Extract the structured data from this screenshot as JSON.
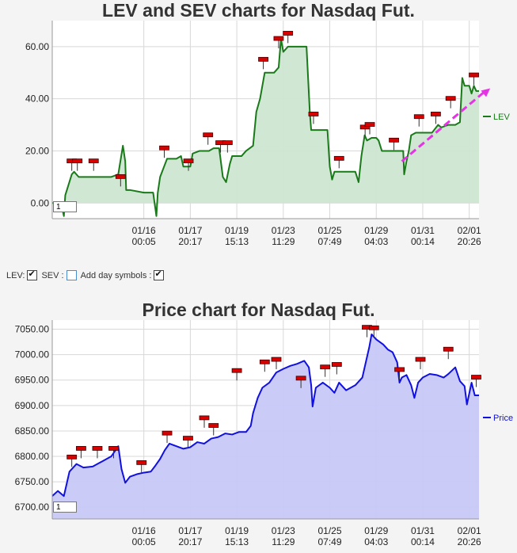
{
  "lev_chart": {
    "title": "LEV and SEV charts for Nasdaq Fut.",
    "zoom_value": "1",
    "legend_label": "LEV",
    "series_color": "#1a7a1a",
    "fill_color": "#cde6d2",
    "arrow_color": "#e633e6"
  },
  "price_chart": {
    "title": "Price chart for Nasdaq Fut.",
    "zoom_value": "1",
    "legend_label": "Price",
    "series_color": "#1010e0",
    "fill_color": "#c8c8f8"
  },
  "controls": {
    "lev_label": "LEV:",
    "sev_label": "SEV :",
    "day_symbols_label": "Add day symbols :",
    "lev_checked": true,
    "sev_checked": false,
    "day_symbols_checked": true
  },
  "chart_data": [
    {
      "type": "line",
      "title": "LEV and SEV charts for Nasdaq Fut.",
      "xlabel": "",
      "ylabel": "",
      "ylim": [
        -6,
        70
      ],
      "yticks": [
        "0.00",
        "20.00",
        "40.00",
        "60.00"
      ],
      "ytick_values": [
        0,
        20,
        40,
        60
      ],
      "xticks": [
        {
          "x": 1,
          "date": "01/16",
          "time": "00:05"
        },
        {
          "x": 2,
          "date": "01/17",
          "time": "20:17"
        },
        {
          "x": 3,
          "date": "01/19",
          "time": "15:13"
        },
        {
          "x": 4,
          "date": "01/23",
          "time": "11:29"
        },
        {
          "x": 5,
          "date": "01/25",
          "time": "07:49"
        },
        {
          "x": 6,
          "date": "01/29",
          "time": "04:03"
        },
        {
          "x": 7,
          "date": "01/31",
          "time": "00:14"
        },
        {
          "x": 8,
          "date": "02/01",
          "time": "20:26"
        }
      ],
      "xlim": [
        -0.97,
        8.21
      ],
      "grid": true,
      "legend": "right",
      "series": [
        {
          "name": "LEV",
          "points": [
            [
              -0.97,
              0
            ],
            [
              -0.78,
              0
            ],
            [
              -0.72,
              -5
            ],
            [
              -0.69,
              3
            ],
            [
              -0.55,
              11
            ],
            [
              -0.5,
              12
            ],
            [
              -0.4,
              10
            ],
            [
              -0.2,
              10
            ],
            [
              0.1,
              10
            ],
            [
              0.3,
              10
            ],
            [
              0.45,
              11
            ],
            [
              0.55,
              22
            ],
            [
              0.6,
              16
            ],
            [
              0.62,
              5
            ],
            [
              0.7,
              5
            ],
            [
              1.0,
              4
            ],
            [
              1.2,
              4
            ],
            [
              1.27,
              -5
            ],
            [
              1.3,
              4
            ],
            [
              1.35,
              10
            ],
            [
              1.5,
              17
            ],
            [
              1.7,
              17
            ],
            [
              1.8,
              18
            ],
            [
              1.85,
              14
            ],
            [
              2.0,
              14
            ],
            [
              2.05,
              19
            ],
            [
              2.2,
              20
            ],
            [
              2.4,
              20
            ],
            [
              2.5,
              21
            ],
            [
              2.62,
              21
            ],
            [
              2.7,
              10
            ],
            [
              2.77,
              8
            ],
            [
              2.85,
              15
            ],
            [
              2.9,
              18
            ],
            [
              3.0,
              18
            ],
            [
              3.1,
              18
            ],
            [
              3.2,
              20
            ],
            [
              3.35,
              22
            ],
            [
              3.42,
              35
            ],
            [
              3.5,
              40
            ],
            [
              3.6,
              50
            ],
            [
              3.8,
              50
            ],
            [
              3.9,
              52
            ],
            [
              3.95,
              63
            ],
            [
              4.0,
              58
            ],
            [
              4.1,
              60
            ],
            [
              4.3,
              60
            ],
            [
              4.5,
              60
            ],
            [
              4.57,
              35
            ],
            [
              4.6,
              28
            ],
            [
              4.75,
              28
            ],
            [
              4.9,
              28
            ],
            [
              4.95,
              28
            ],
            [
              5.0,
              14
            ],
            [
              5.05,
              9
            ],
            [
              5.1,
              12
            ],
            [
              5.3,
              12
            ],
            [
              5.55,
              12
            ],
            [
              5.62,
              8
            ],
            [
              5.68,
              18
            ],
            [
              5.75,
              26
            ],
            [
              5.8,
              24
            ],
            [
              5.9,
              25
            ],
            [
              6.0,
              25
            ],
            [
              6.05,
              24
            ],
            [
              6.12,
              20
            ],
            [
              6.2,
              20
            ],
            [
              6.4,
              20
            ],
            [
              6.5,
              20
            ],
            [
              6.58,
              20
            ],
            [
              6.6,
              11
            ],
            [
              6.65,
              16
            ],
            [
              6.7,
              20
            ],
            [
              6.75,
              26
            ],
            [
              6.85,
              27
            ],
            [
              7.0,
              27
            ],
            [
              7.2,
              27
            ],
            [
              7.33,
              30
            ],
            [
              7.4,
              29
            ],
            [
              7.55,
              30
            ],
            [
              7.7,
              30
            ],
            [
              7.8,
              31
            ],
            [
              7.85,
              48
            ],
            [
              7.9,
              45
            ],
            [
              8.0,
              45
            ],
            [
              8.05,
              42
            ],
            [
              8.1,
              45
            ],
            [
              8.15,
              43
            ],
            [
              8.21,
              43
            ]
          ]
        }
      ],
      "annotations": {
        "day_markers": [
          [
            -0.55,
            16
          ],
          [
            -0.43,
            16
          ],
          [
            -0.08,
            16
          ],
          [
            0.5,
            10
          ],
          [
            1.44,
            21
          ],
          [
            1.96,
            16
          ],
          [
            2.38,
            26
          ],
          [
            2.65,
            23
          ],
          [
            2.8,
            23
          ],
          [
            3.57,
            55
          ],
          [
            3.9,
            63
          ],
          [
            4.1,
            65
          ],
          [
            4.65,
            34
          ],
          [
            5.2,
            17
          ],
          [
            5.76,
            29
          ],
          [
            5.86,
            30
          ],
          [
            6.38,
            24
          ],
          [
            6.92,
            33
          ],
          [
            7.28,
            34
          ],
          [
            7.6,
            40
          ],
          [
            8.1,
            49
          ]
        ],
        "trend_arrow": {
          "from": [
            6.55,
            16
          ],
          "to": [
            8.45,
            44
          ]
        }
      }
    },
    {
      "type": "area",
      "title": "Price chart for Nasdaq Fut.",
      "xlabel": "",
      "ylabel": "",
      "ylim": [
        6677,
        7068
      ],
      "yticks": [
        "6700.00",
        "6750.00",
        "6800.00",
        "6850.00",
        "6900.00",
        "6950.00",
        "7000.00",
        "7050.00"
      ],
      "ytick_values": [
        6700,
        6750,
        6800,
        6850,
        6900,
        6950,
        7000,
        7050
      ],
      "xticks": [
        {
          "x": 1,
          "date": "01/16",
          "time": "00:05"
        },
        {
          "x": 2,
          "date": "01/17",
          "time": "20:17"
        },
        {
          "x": 3,
          "date": "01/19",
          "time": "15:13"
        },
        {
          "x": 4,
          "date": "01/23",
          "time": "11:29"
        },
        {
          "x": 5,
          "date": "01/25",
          "time": "07:49"
        },
        {
          "x": 6,
          "date": "01/29",
          "time": "04:03"
        },
        {
          "x": 7,
          "date": "01/31",
          "time": "00:14"
        },
        {
          "x": 8,
          "date": "02/01",
          "time": "20:26"
        }
      ],
      "xlim": [
        -0.97,
        8.21
      ],
      "grid": true,
      "legend": "right",
      "series": [
        {
          "name": "Price",
          "points": [
            [
              -0.97,
              6722
            ],
            [
              -0.85,
              6732
            ],
            [
              -0.72,
              6722
            ],
            [
              -0.6,
              6770
            ],
            [
              -0.45,
              6785
            ],
            [
              -0.3,
              6778
            ],
            [
              -0.1,
              6780
            ],
            [
              0.1,
              6790
            ],
            [
              0.3,
              6800
            ],
            [
              0.45,
              6820
            ],
            [
              0.52,
              6775
            ],
            [
              0.6,
              6748
            ],
            [
              0.7,
              6760
            ],
            [
              0.85,
              6765
            ],
            [
              1.0,
              6768
            ],
            [
              1.15,
              6770
            ],
            [
              1.25,
              6782
            ],
            [
              1.35,
              6795
            ],
            [
              1.45,
              6812
            ],
            [
              1.55,
              6825
            ],
            [
              1.7,
              6820
            ],
            [
              1.85,
              6815
            ],
            [
              2.0,
              6818
            ],
            [
              2.15,
              6828
            ],
            [
              2.3,
              6825
            ],
            [
              2.45,
              6835
            ],
            [
              2.6,
              6838
            ],
            [
              2.75,
              6845
            ],
            [
              2.9,
              6843
            ],
            [
              3.05,
              6848
            ],
            [
              3.2,
              6848
            ],
            [
              3.3,
              6860
            ],
            [
              3.35,
              6885
            ],
            [
              3.45,
              6915
            ],
            [
              3.55,
              6935
            ],
            [
              3.7,
              6945
            ],
            [
              3.85,
              6965
            ],
            [
              4.0,
              6972
            ],
            [
              4.15,
              6978
            ],
            [
              4.3,
              6982
            ],
            [
              4.45,
              6988
            ],
            [
              4.55,
              6975
            ],
            [
              4.6,
              6940
            ],
            [
              4.63,
              6898
            ],
            [
              4.7,
              6935
            ],
            [
              4.85,
              6945
            ],
            [
              5.0,
              6935
            ],
            [
              5.1,
              6925
            ],
            [
              5.2,
              6945
            ],
            [
              5.35,
              6930
            ],
            [
              5.45,
              6935
            ],
            [
              5.55,
              6940
            ],
            [
              5.7,
              6955
            ],
            [
              5.85,
              7015
            ],
            [
              5.9,
              7040
            ],
            [
              6.0,
              7030
            ],
            [
              6.15,
              7020
            ],
            [
              6.25,
              7010
            ],
            [
              6.35,
              7005
            ],
            [
              6.45,
              6985
            ],
            [
              6.5,
              6945
            ],
            [
              6.55,
              6955
            ],
            [
              6.65,
              6960
            ],
            [
              6.75,
              6940
            ],
            [
              6.82,
              6915
            ],
            [
              6.9,
              6945
            ],
            [
              7.0,
              6955
            ],
            [
              7.15,
              6962
            ],
            [
              7.3,
              6960
            ],
            [
              7.45,
              6955
            ],
            [
              7.55,
              6962
            ],
            [
              7.7,
              6975
            ],
            [
              7.8,
              6948
            ],
            [
              7.9,
              6938
            ],
            [
              7.95,
              6902
            ],
            [
              8.05,
              6945
            ],
            [
              8.12,
              6920
            ],
            [
              8.21,
              6920
            ]
          ]
        }
      ],
      "annotations": {
        "day_markers": [
          [
            -0.55,
            6798
          ],
          [
            -0.35,
            6815
          ],
          [
            0.0,
            6815
          ],
          [
            0.35,
            6815
          ],
          [
            0.95,
            6787
          ],
          [
            1.5,
            6845
          ],
          [
            1.95,
            6835
          ],
          [
            2.3,
            6875
          ],
          [
            2.5,
            6860
          ],
          [
            3.0,
            6968
          ],
          [
            3.6,
            6985
          ],
          [
            3.85,
            6990
          ],
          [
            4.38,
            6953
          ],
          [
            4.9,
            6975
          ],
          [
            5.15,
            6980
          ],
          [
            5.8,
            7053
          ],
          [
            5.95,
            7052
          ],
          [
            6.5,
            6970
          ],
          [
            6.95,
            6990
          ],
          [
            7.55,
            7010
          ],
          [
            8.15,
            6955
          ]
        ]
      }
    }
  ]
}
